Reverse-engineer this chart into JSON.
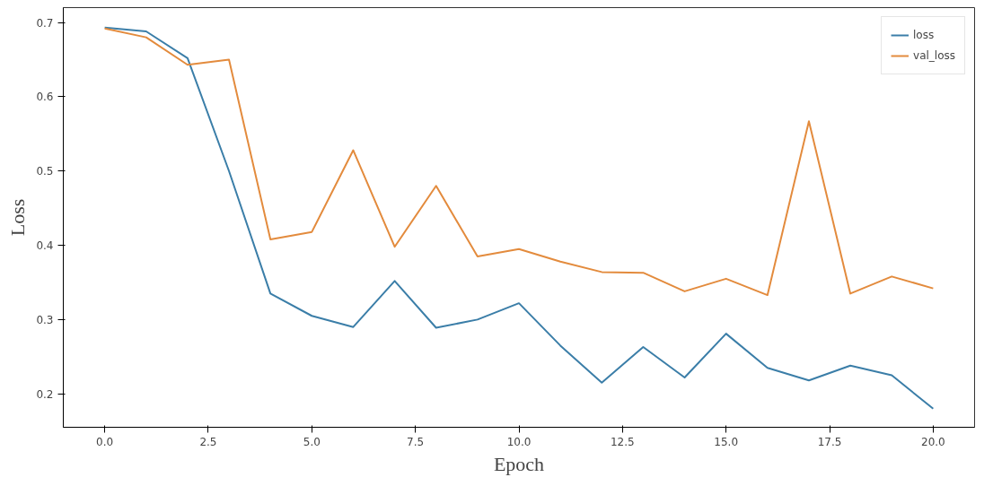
{
  "chart_data": {
    "type": "line",
    "xlabel": "Epoch",
    "ylabel": "Loss",
    "x": [
      0,
      1,
      2,
      3,
      4,
      5,
      6,
      7,
      8,
      9,
      10,
      11,
      12,
      13,
      14,
      15,
      16,
      17,
      18,
      19,
      20
    ],
    "series": [
      {
        "name": "loss",
        "color": "#3b7ea8",
        "values": [
          0.693,
          0.688,
          0.652,
          0.5,
          0.335,
          0.305,
          0.29,
          0.352,
          0.289,
          0.3,
          0.322,
          0.265,
          0.215,
          0.263,
          0.222,
          0.281,
          0.235,
          0.218,
          0.238,
          0.225,
          0.18
        ]
      },
      {
        "name": "val_loss",
        "color": "#e38b3d",
        "values": [
          0.692,
          0.68,
          0.643,
          0.65,
          0.408,
          0.418,
          0.528,
          0.398,
          0.48,
          0.385,
          0.395,
          0.378,
          0.364,
          0.363,
          0.338,
          0.355,
          0.333,
          0.567,
          0.335,
          0.358,
          0.342
        ]
      }
    ],
    "xlim": [
      -1,
      21
    ],
    "ylim": [
      0.155,
      0.72
    ],
    "xticks": [
      {
        "value": 0,
        "label": "0.0"
      },
      {
        "value": 2.5,
        "label": "2.5"
      },
      {
        "value": 5,
        "label": "5.0"
      },
      {
        "value": 7.5,
        "label": "7.5"
      },
      {
        "value": 10,
        "label": "10.0"
      },
      {
        "value": 12.5,
        "label": "12.5"
      },
      {
        "value": 15,
        "label": "15.0"
      },
      {
        "value": 17.5,
        "label": "17.5"
      },
      {
        "value": 20,
        "label": "20.0"
      }
    ],
    "yticks": [
      0.2,
      0.3,
      0.4,
      0.5,
      0.6,
      0.7
    ],
    "grid": false,
    "legend": "top right",
    "marker": "none",
    "line_style": "solid"
  }
}
